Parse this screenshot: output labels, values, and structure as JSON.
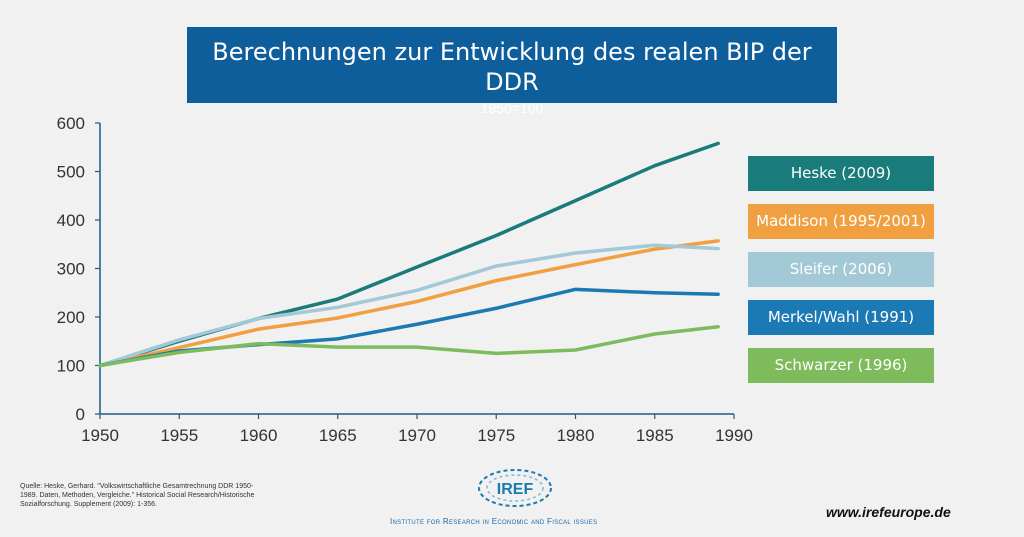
{
  "title": "Berechnungen zur Entwicklung des realen BIP der DDR",
  "subtitle": "1950=100",
  "chart_data": {
    "type": "line",
    "x": [
      1950,
      1955,
      1960,
      1965,
      1970,
      1975,
      1980,
      1985,
      1989
    ],
    "xlim": [
      1950,
      1990
    ],
    "ylim": [
      0,
      600
    ],
    "xticks": [
      1950,
      1955,
      1960,
      1965,
      1970,
      1975,
      1980,
      1985,
      1990
    ],
    "yticks": [
      0,
      100,
      200,
      300,
      400,
      500,
      600
    ],
    "grid": false,
    "legend_position": "right",
    "series": [
      {
        "name": "Heske (2009)",
        "color": "#1a7b7b",
        "values": [
          100,
          150,
          197,
          237,
          303,
          368,
          440,
          512,
          558
        ]
      },
      {
        "name": "Maddison (1995/2001)",
        "color": "#f0a040",
        "values": [
          100,
          137,
          175,
          198,
          232,
          275,
          308,
          340,
          357
        ]
      },
      {
        "name": "Sleifer (2006)",
        "color": "#a3c8d6",
        "values": [
          100,
          153,
          197,
          220,
          255,
          305,
          332,
          348,
          341
        ]
      },
      {
        "name": "Merkel/Wahl (1991)",
        "color": "#1b79b4",
        "values": [
          100,
          130,
          143,
          155,
          185,
          218,
          257,
          250,
          247
        ]
      },
      {
        "name": "Schwarzer (1996)",
        "color": "#7dbb5c",
        "values": [
          100,
          127,
          145,
          138,
          138,
          125,
          132,
          165,
          180
        ]
      }
    ]
  },
  "source_text": "Quelle: Heske, Gerhard. \"Volkswirtschaftliche Gesamtrechnung DDR 1950-1989. Daten, Methoden, Vergleiche.\" Historical Social Research/Historische Sozialforschung. Supplement (2009): 1-356.",
  "logo_label": "IREF",
  "institute": "Institute for Research in Economic and Fiscal issues",
  "website": "www.irefeurope.de"
}
